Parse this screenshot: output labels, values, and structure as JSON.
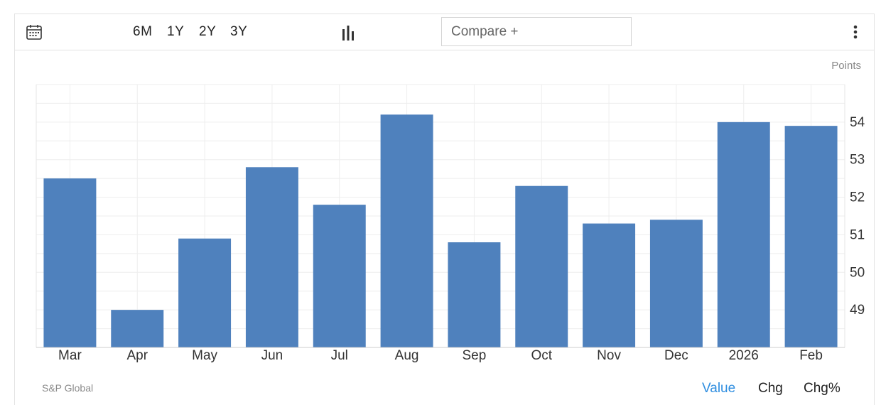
{
  "toolbar": {
    "ranges": [
      "6M",
      "1Y",
      "2Y",
      "3Y"
    ],
    "compare_label": "Compare +",
    "icons": {
      "calendar": "calendar-icon",
      "chart_type": "bar-chart-icon",
      "more": "more-vertical-icon"
    }
  },
  "chart_data": {
    "type": "bar",
    "unit_label": "Points",
    "categories": [
      "Mar",
      "Apr",
      "May",
      "Jun",
      "Jul",
      "Aug",
      "Sep",
      "Oct",
      "Nov",
      "Dec",
      "2026",
      "Feb"
    ],
    "values": [
      52.5,
      49.0,
      50.9,
      52.8,
      51.8,
      54.2,
      50.8,
      52.3,
      51.3,
      51.4,
      54.0,
      53.9
    ],
    "yticks": [
      49,
      50,
      51,
      52,
      53,
      54
    ],
    "ylim": [
      48.0,
      55.0
    ],
    "grid": true,
    "bar_color": "#4f81bd"
  },
  "footer": {
    "source": "S&P Global",
    "metrics": [
      "Value",
      "Chg",
      "Chg%"
    ],
    "active_metric": "Value",
    "active_color": "#2f8ee0"
  }
}
